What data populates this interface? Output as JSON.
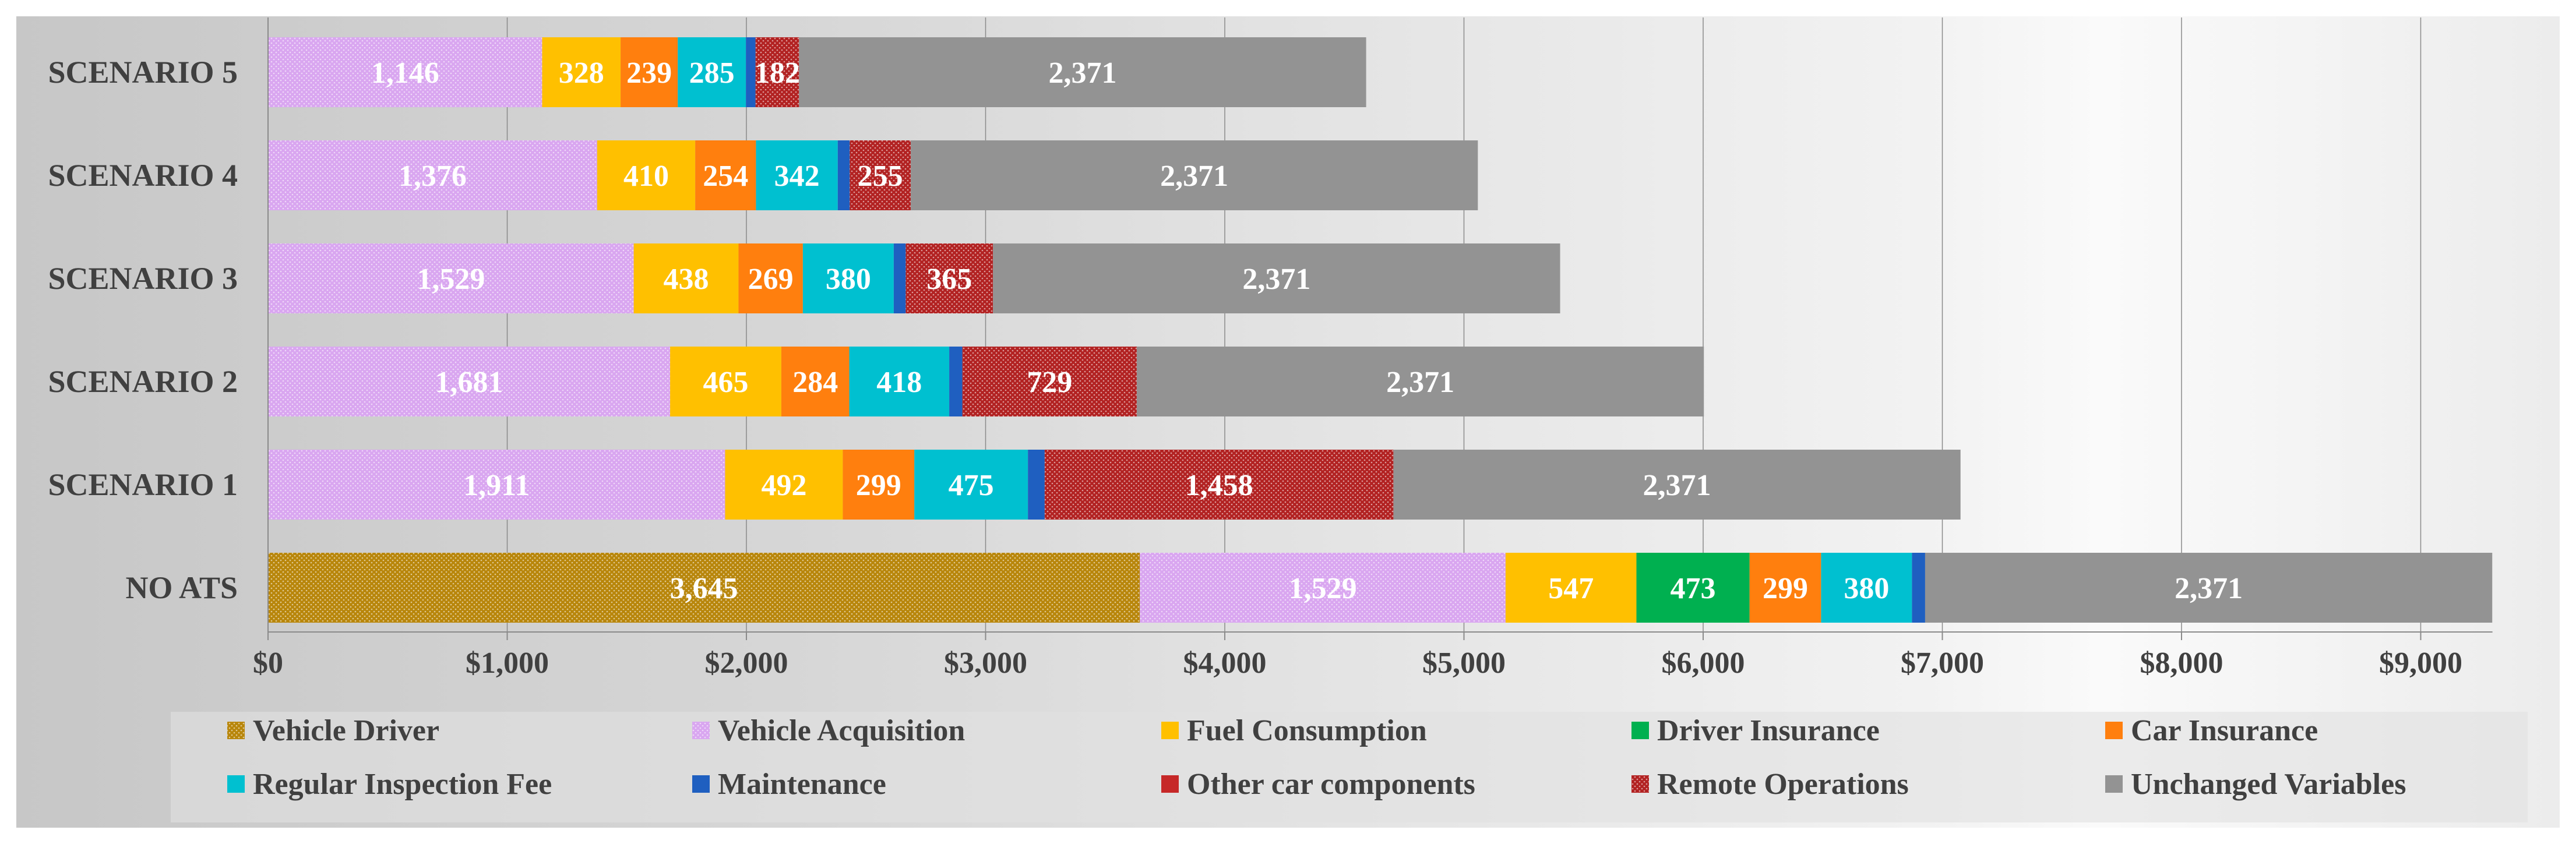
{
  "chart_data": {
    "type": "bar",
    "orientation": "horizontal",
    "stacked": true,
    "title": "",
    "xlabel": "",
    "ylabel": "",
    "xlim": [
      0,
      9300
    ],
    "x_ticks": [
      "$0",
      "$1,000",
      "$2,000",
      "$3,000",
      "$4,000",
      "$5,000",
      "$6,000",
      "$7,000",
      "$8,000",
      "$9,000"
    ],
    "x_tick_values": [
      0,
      1000,
      2000,
      3000,
      4000,
      5000,
      6000,
      7000,
      8000,
      9000
    ],
    "grid": "vertical",
    "legend_position": "bottom",
    "categories": [
      "SCENARIO 5",
      "SCENARIO 4",
      "SCENARIO 3",
      "SCENARIO 2",
      "SCENARIO 1",
      "NO ATS"
    ],
    "series": [
      {
        "name": "Vehicle Driver",
        "color": "#b8860b",
        "pattern": "dots",
        "values": [
          0,
          0,
          0,
          0,
          0,
          3645
        ],
        "labels": [
          "",
          "",
          "",
          "",
          "",
          "3,645"
        ]
      },
      {
        "name": "Vehicle Acquisition",
        "color": "#d9a6f0",
        "pattern": "dots",
        "values": [
          1146,
          1376,
          1529,
          1681,
          1911,
          1529
        ],
        "labels": [
          "1,146",
          "1,376",
          "1,529",
          "1,681",
          "1,911",
          "1,529"
        ]
      },
      {
        "name": "Fuel Consumption",
        "color": "#ffc000",
        "pattern": "solid",
        "values": [
          328,
          410,
          438,
          465,
          492,
          547
        ],
        "labels": [
          "328",
          "410",
          "438",
          "465",
          "492",
          "547"
        ]
      },
      {
        "name": "Driver Insurance",
        "color": "#00b050",
        "pattern": "solid",
        "values": [
          0,
          0,
          0,
          0,
          0,
          473
        ],
        "labels": [
          "",
          "",
          "",
          "",
          "",
          "473"
        ]
      },
      {
        "name": "Car Insurance",
        "color": "#ff7f0e",
        "pattern": "solid",
        "values": [
          239,
          254,
          269,
          284,
          299,
          299
        ],
        "labels": [
          "239",
          "254",
          "269",
          "284",
          "299",
          "299"
        ]
      },
      {
        "name": "Regular Inspection Fee",
        "color": "#00c0d0",
        "pattern": "solid",
        "values": [
          285,
          342,
          380,
          418,
          475,
          380
        ],
        "labels": [
          "285",
          "342",
          "380",
          "418",
          "475",
          "380"
        ]
      },
      {
        "name": "Maintenance",
        "color": "#1f5fc0",
        "pattern": "solid",
        "values": [
          40,
          50,
          50,
          55,
          70,
          55
        ],
        "labels": [
          "",
          "",
          "",
          "",
          "",
          ""
        ]
      },
      {
        "name": "Other car components",
        "color": "#c62828",
        "pattern": "solid",
        "values": [
          0,
          0,
          0,
          0,
          0,
          0
        ],
        "labels": [
          "",
          "",
          "",
          "",
          "",
          ""
        ]
      },
      {
        "name": "Remote Operations",
        "color": "#b22222",
        "pattern": "dots",
        "values": [
          182,
          255,
          365,
          729,
          1458,
          0
        ],
        "labels": [
          "182",
          "255",
          "365",
          "729",
          "1,458",
          ""
        ]
      },
      {
        "name": "Unchanged Variables",
        "color": "#939393",
        "pattern": "solid",
        "values": [
          2371,
          2371,
          2371,
          2371,
          2371,
          2371
        ],
        "labels": [
          "2,371",
          "2,371",
          "2,371",
          "2,371",
          "2,371",
          "2,371"
        ]
      }
    ]
  }
}
